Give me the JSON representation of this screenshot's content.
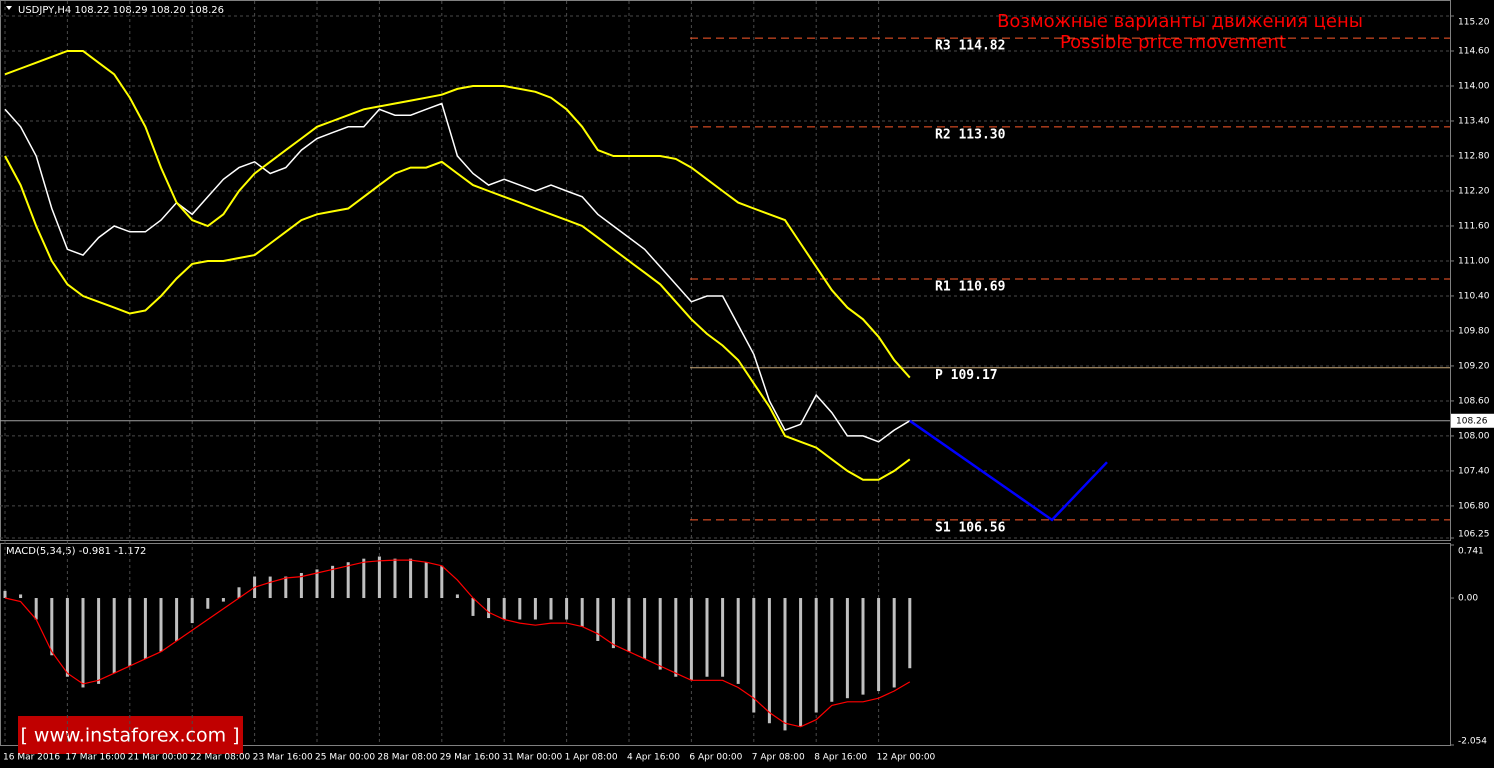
{
  "chart_data": [
    {
      "type": "price",
      "title": "USDJPY,H4  108.22 108.29 108.20 108.26",
      "annotation": [
        "Возможные варианты движения цены",
        "Possible price movement"
      ],
      "watermark": "[  www.instaforex.com ]",
      "categories": [
        "16 Mar 2016",
        null,
        null,
        null,
        "17 Mar 16:00",
        null,
        null,
        null,
        "21 Mar 00:00",
        null,
        null,
        null,
        "22 Mar 08:00",
        null,
        null,
        null,
        "23 Mar 16:00",
        null,
        null,
        null,
        "25 Mar 00:00",
        null,
        null,
        null,
        "28 Mar 08:00",
        null,
        null,
        null,
        "29 Mar 16:00",
        null,
        null,
        null,
        "31 Mar 00:00",
        null,
        null,
        null,
        "1 Apr 08:00",
        null,
        null,
        null,
        "4 Apr 16:00",
        null,
        null,
        null,
        "6 Apr 00:00",
        null,
        null,
        null,
        "7 Apr 08:00",
        null,
        null,
        null,
        "8 Apr 16:00",
        null,
        null,
        null,
        "12 Apr 00:00",
        null,
        null
      ],
      "series": [
        {
          "name": "Close",
          "color": "#ffffff",
          "values": [
            113.6,
            113.3,
            112.8,
            111.9,
            111.2,
            111.1,
            111.4,
            111.6,
            111.5,
            111.5,
            111.7,
            112.0,
            111.8,
            112.1,
            112.4,
            112.6,
            112.7,
            112.5,
            112.6,
            112.9,
            113.1,
            113.2,
            113.3,
            113.3,
            113.6,
            113.5,
            113.5,
            113.6,
            113.7,
            112.8,
            112.5,
            112.3,
            112.4,
            112.3,
            112.2,
            112.3,
            112.2,
            112.1,
            111.8,
            111.6,
            111.4,
            111.2,
            110.9,
            110.6,
            110.3,
            110.4,
            110.4,
            109.9,
            109.4,
            108.6,
            108.1,
            108.2,
            108.7,
            108.4,
            108.0,
            108.0,
            107.9,
            108.1,
            108.26
          ]
        },
        {
          "name": "Upper band",
          "color": "#ffff00",
          "values": [
            114.2,
            114.3,
            114.4,
            114.5,
            114.6,
            114.6,
            114.4,
            114.2,
            113.8,
            113.3,
            112.6,
            112.0,
            111.7,
            111.6,
            111.8,
            112.2,
            112.5,
            112.7,
            112.9,
            113.1,
            113.3,
            113.4,
            113.5,
            113.6,
            113.65,
            113.7,
            113.75,
            113.8,
            113.85,
            113.95,
            114.0,
            114.0,
            114.0,
            113.95,
            113.9,
            113.8,
            113.6,
            113.3,
            112.9,
            112.8,
            112.8,
            112.8,
            112.8,
            112.75,
            112.6,
            112.4,
            112.2,
            112.0,
            111.9,
            111.8,
            111.7,
            111.3,
            110.9,
            110.5,
            110.2,
            110.0,
            109.7,
            109.3,
            109.0
          ]
        },
        {
          "name": "Lower band",
          "color": "#ffff00",
          "values": [
            112.8,
            112.3,
            111.6,
            111.0,
            110.6,
            110.4,
            110.3,
            110.2,
            110.1,
            110.15,
            110.4,
            110.7,
            110.95,
            111.0,
            111.0,
            111.05,
            111.1,
            111.3,
            111.5,
            111.7,
            111.8,
            111.85,
            111.9,
            112.1,
            112.3,
            112.5,
            112.6,
            112.6,
            112.7,
            112.5,
            112.3,
            112.2,
            112.1,
            112.0,
            111.9,
            111.8,
            111.7,
            111.6,
            111.4,
            111.2,
            111.0,
            110.8,
            110.6,
            110.3,
            110.0,
            109.75,
            109.55,
            109.3,
            108.9,
            108.5,
            108.0,
            107.9,
            107.8,
            107.6,
            107.4,
            107.25,
            107.25,
            107.4,
            107.6
          ]
        }
      ],
      "current_price": 108.26,
      "pivots": [
        {
          "label": "R3 114.82",
          "value": 114.82
        },
        {
          "label": "R2 113.30",
          "value": 113.3
        },
        {
          "label": "R1 110.69",
          "value": 110.69
        },
        {
          "label": "P  109.17",
          "value": 109.17
        },
        {
          "label": "S1 106.56",
          "value": 106.56
        }
      ],
      "forecast": {
        "color": "#0000ff",
        "values": [
          108.26,
          106.56,
          107.55
        ]
      },
      "ylim": [
        106.25,
        115.2
      ],
      "yticks": [
        {
          "value": 115.2,
          "label": "115.20"
        },
        {
          "value": 114.6,
          "label": "114.60"
        },
        {
          "value": 114,
          "label": "114.00"
        },
        {
          "value": 113.4,
          "label": "113.40"
        },
        {
          "value": 112.8,
          "label": "112.80"
        },
        {
          "value": 112.2,
          "label": "112.20"
        },
        {
          "value": 111.6,
          "label": "111.60"
        },
        {
          "value": 111,
          "label": "111.00"
        },
        {
          "value": 110.4,
          "label": "110.40"
        },
        {
          "value": 109.8,
          "label": "109.80"
        },
        {
          "value": 109.2,
          "label": "109.20"
        },
        {
          "value": 108.6,
          "label": "108.60"
        },
        {
          "value": 108,
          "label": "108.00"
        },
        {
          "value": 107.4,
          "label": "107.40"
        },
        {
          "value": 106.8,
          "label": "106.80"
        },
        {
          "value": 106.25,
          "label": "106.25"
        }
      ],
      "grid": true
    },
    {
      "type": "macd",
      "title": "MACD(5,34,5) -0.981 -1.172",
      "series": [
        {
          "name": "Histogram",
          "color": "#c0c0c0",
          "values": [
            0.1,
            0.05,
            -0.3,
            -0.8,
            -1.1,
            -1.25,
            -1.2,
            -1.05,
            -0.95,
            -0.85,
            -0.75,
            -0.6,
            -0.35,
            -0.15,
            -0.05,
            0.15,
            0.3,
            0.3,
            0.3,
            0.35,
            0.4,
            0.45,
            0.5,
            0.55,
            0.58,
            0.55,
            0.55,
            0.5,
            0.45,
            0.05,
            -0.25,
            -0.28,
            -0.3,
            -0.3,
            -0.3,
            -0.3,
            -0.3,
            -0.4,
            -0.6,
            -0.7,
            -0.75,
            -0.85,
            -1.0,
            -1.1,
            -1.15,
            -1.1,
            -1.1,
            -1.2,
            -1.6,
            -1.75,
            -1.85,
            -1.8,
            -1.6,
            -1.45,
            -1.4,
            -1.35,
            -1.3,
            -1.25,
            -0.981
          ]
        },
        {
          "name": "Signal",
          "color": "#ff0000",
          "values": [
            0.0,
            -0.05,
            -0.3,
            -0.75,
            -1.05,
            -1.2,
            -1.15,
            -1.05,
            -0.95,
            -0.85,
            -0.75,
            -0.6,
            -0.45,
            -0.3,
            -0.15,
            0.0,
            0.15,
            0.22,
            0.28,
            0.3,
            0.35,
            0.4,
            0.45,
            0.5,
            0.52,
            0.53,
            0.53,
            0.5,
            0.45,
            0.25,
            0.0,
            -0.2,
            -0.3,
            -0.35,
            -0.38,
            -0.35,
            -0.35,
            -0.4,
            -0.5,
            -0.65,
            -0.75,
            -0.85,
            -0.95,
            -1.05,
            -1.15,
            -1.15,
            -1.15,
            -1.25,
            -1.4,
            -1.6,
            -1.75,
            -1.8,
            -1.7,
            -1.5,
            -1.45,
            -1.45,
            -1.4,
            -1.3,
            -1.172
          ]
        }
      ],
      "ylim": [
        -2.054,
        0.741
      ],
      "yticks": [
        0.741,
        {
          "value": 0,
          "label": "0.00"
        },
        -2.054
      ]
    }
  ]
}
